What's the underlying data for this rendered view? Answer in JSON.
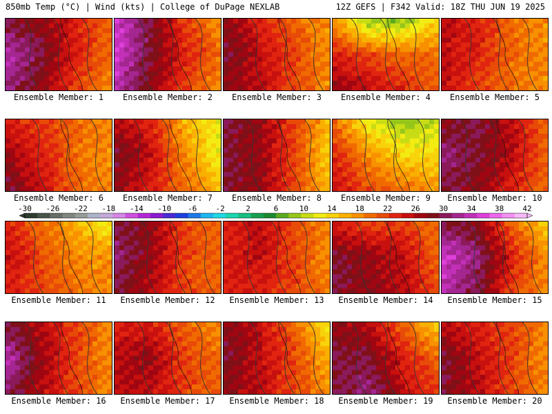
{
  "header": {
    "left_title": "850mb Temp (°C) | Wind (kts) | College of DuPage NEXLAB",
    "right_title": "12Z GEFS | F342 Valid: 18Z THU JUN 19 2025"
  },
  "chart_data": {
    "type": "heatmap",
    "title": "850mb Temp (°C) | Wind (kts)",
    "panels": [
      {
        "label": "Ensemble Member: 1",
        "t": [
          [
            30,
            28,
            24,
            20
          ],
          [
            34,
            30,
            24,
            20
          ],
          [
            32,
            28,
            22,
            18
          ]
        ]
      },
      {
        "label": "Ensemble Member: 2",
        "t": [
          [
            36,
            30,
            22,
            18
          ],
          [
            36,
            30,
            24,
            20
          ],
          [
            34,
            28,
            22,
            18
          ]
        ]
      },
      {
        "label": "Ensemble Member: 3",
        "t": [
          [
            28,
            24,
            20,
            18
          ],
          [
            30,
            26,
            22,
            18
          ],
          [
            28,
            26,
            22,
            18
          ]
        ]
      },
      {
        "label": "Ensemble Member: 4",
        "t": [
          [
            18,
            8,
            8,
            14
          ],
          [
            24,
            22,
            20,
            20
          ],
          [
            28,
            26,
            24,
            20
          ]
        ]
      },
      {
        "label": "Ensemble Member: 5",
        "t": [
          [
            26,
            24,
            20,
            18
          ],
          [
            26,
            24,
            20,
            18
          ],
          [
            26,
            22,
            20,
            18
          ]
        ]
      },
      {
        "label": "Ensemble Member: 6",
        "t": [
          [
            24,
            22,
            20,
            18
          ],
          [
            28,
            24,
            20,
            18
          ],
          [
            30,
            26,
            20,
            18
          ]
        ]
      },
      {
        "label": "Ensemble Member: 7",
        "t": [
          [
            26,
            24,
            16,
            12
          ],
          [
            30,
            26,
            18,
            12
          ],
          [
            28,
            24,
            20,
            16
          ]
        ]
      },
      {
        "label": "Ensemble Member: 8",
        "t": [
          [
            30,
            28,
            22,
            16
          ],
          [
            30,
            28,
            22,
            14
          ],
          [
            30,
            28,
            22,
            16
          ]
        ]
      },
      {
        "label": "Ensemble Member: 9",
        "t": [
          [
            20,
            12,
            8,
            10
          ],
          [
            24,
            18,
            14,
            14
          ],
          [
            26,
            22,
            20,
            18
          ]
        ]
      },
      {
        "label": "Ensemble Member: 10",
        "t": [
          [
            28,
            30,
            26,
            20
          ],
          [
            32,
            30,
            26,
            20
          ],
          [
            30,
            28,
            24,
            20
          ]
        ]
      },
      {
        "label": "Ensemble Member: 11",
        "t": [
          [
            24,
            20,
            16,
            12
          ],
          [
            26,
            22,
            18,
            18
          ],
          [
            24,
            22,
            20,
            18
          ]
        ]
      },
      {
        "label": "Ensemble Member: 12",
        "t": [
          [
            30,
            28,
            22,
            20
          ],
          [
            32,
            28,
            22,
            20
          ],
          [
            30,
            26,
            22,
            20
          ]
        ]
      },
      {
        "label": "Ensemble Member: 13",
        "t": [
          [
            24,
            26,
            22,
            18
          ],
          [
            24,
            26,
            22,
            18
          ],
          [
            24,
            24,
            22,
            20
          ]
        ]
      },
      {
        "label": "Ensemble Member: 14",
        "t": [
          [
            24,
            22,
            22,
            20
          ],
          [
            30,
            28,
            26,
            20
          ],
          [
            30,
            28,
            26,
            22
          ]
        ]
      },
      {
        "label": "Ensemble Member: 15",
        "t": [
          [
            30,
            28,
            20,
            14
          ],
          [
            36,
            32,
            24,
            18
          ],
          [
            34,
            30,
            22,
            18
          ]
        ]
      },
      {
        "label": "Ensemble Member: 16",
        "t": [
          [
            30,
            26,
            22,
            18
          ],
          [
            34,
            28,
            22,
            18
          ],
          [
            32,
            26,
            22,
            18
          ]
        ]
      },
      {
        "label": "Ensemble Member: 17",
        "t": [
          [
            24,
            24,
            20,
            18
          ],
          [
            26,
            28,
            22,
            20
          ],
          [
            26,
            26,
            22,
            20
          ]
        ]
      },
      {
        "label": "Ensemble Member: 18",
        "t": [
          [
            28,
            26,
            20,
            12
          ],
          [
            30,
            26,
            22,
            16
          ],
          [
            28,
            26,
            22,
            18
          ]
        ]
      },
      {
        "label": "Ensemble Member: 19",
        "t": [
          [
            28,
            26,
            20,
            14
          ],
          [
            30,
            30,
            24,
            20
          ],
          [
            30,
            32,
            26,
            22
          ]
        ]
      },
      {
        "label": "Ensemble Member: 20",
        "t": [
          [
            26,
            24,
            22,
            18
          ],
          [
            30,
            26,
            22,
            18
          ],
          [
            30,
            26,
            22,
            18
          ]
        ]
      }
    ],
    "colorbar": {
      "ticks": [
        "-30",
        "-26",
        "-22",
        "-18",
        "-14",
        "-10",
        "-6",
        "-2",
        "2",
        "6",
        "10",
        "14",
        "18",
        "22",
        "26",
        "30",
        "34",
        "38",
        "42"
      ],
      "colors": [
        "#2e3b2e",
        "#4a554a",
        "#666e66",
        "#7f857f",
        "#969b96",
        "#adb3c8",
        "#c4a8d8",
        "#d486e6",
        "#cf4fe0",
        "#b626d8",
        "#8a1ad0",
        "#4a2ad6",
        "#1d3fe0",
        "#1c7ae8",
        "#1cb7f0",
        "#1fd9e6",
        "#1ad6b0",
        "#16c080",
        "#14a050",
        "#1a8a2e",
        "#5aaa20",
        "#96c61a",
        "#c8dc16",
        "#f2ec12",
        "#f8d20a",
        "#fab000",
        "#f89000",
        "#f06a00",
        "#e84a08",
        "#e02410",
        "#c8100e",
        "#a00612",
        "#801018",
        "#8a1a5a",
        "#a42690",
        "#c230b8",
        "#de40da",
        "#ee66ee",
        "#f48ff4",
        "#f8b8f8"
      ]
    }
  }
}
